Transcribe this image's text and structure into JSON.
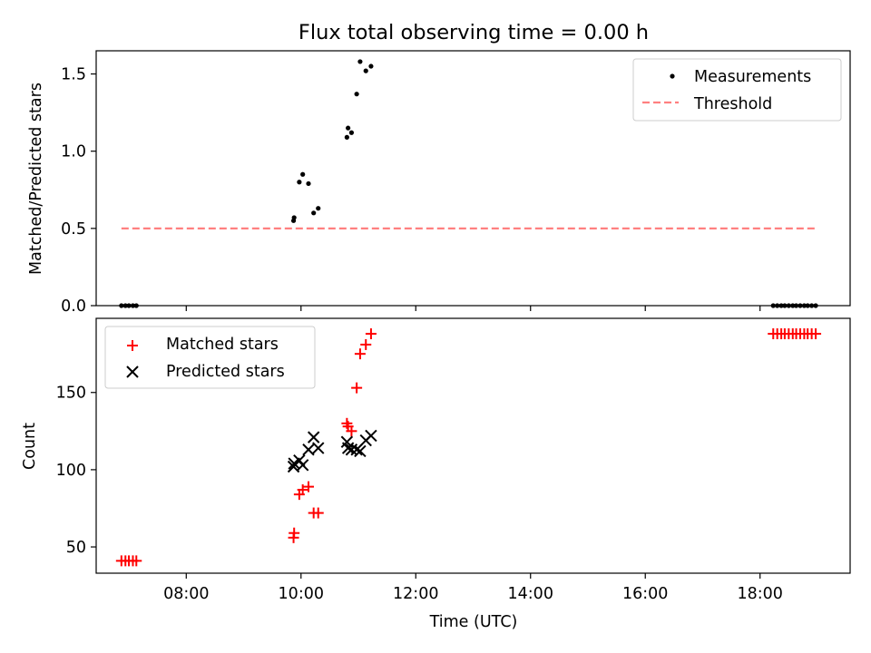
{
  "figure": {
    "title": "Flux total observing time = 0.00 h"
  },
  "colors": {
    "measurements": "#000000",
    "threshold": "#ff8080",
    "matched": "#ff0000",
    "predicted": "#000000"
  },
  "chart_data": [
    {
      "type": "scatter",
      "panel": "top",
      "title": "Flux total observing time = 0.00 h",
      "xlabel": "",
      "ylabel": "Matched/Predicted stars",
      "x_unit": "time of day (UTC), hours",
      "xlim": [
        6.43,
        19.57
      ],
      "ylim": [
        0.0,
        1.65
      ],
      "xticks": [
        8,
        10,
        12,
        14,
        16,
        18
      ],
      "yticks": [
        0.0,
        0.5,
        1.0,
        1.5
      ],
      "ytick_labels": [
        "0.0",
        "0.5",
        "1.0",
        "1.5"
      ],
      "legend_position": "top-right",
      "series": [
        {
          "name": "Measurements",
          "marker": "dot",
          "x": [
            6.87,
            6.94,
            7.0,
            7.07,
            7.13,
            9.87,
            9.88,
            9.97,
            10.03,
            10.13,
            10.22,
            10.3,
            10.8,
            10.82,
            10.88,
            10.97,
            11.03,
            11.13,
            11.22,
            18.23,
            18.3,
            18.37,
            18.43,
            18.5,
            18.57,
            18.63,
            18.7,
            18.77,
            18.83,
            18.9,
            18.97
          ],
          "y": [
            0.0,
            0.0,
            0.0,
            0.0,
            0.0,
            0.55,
            0.57,
            0.8,
            0.85,
            0.79,
            0.6,
            0.63,
            1.09,
            1.15,
            1.12,
            1.37,
            1.58,
            1.52,
            1.55,
            0.0,
            0.0,
            0.0,
            0.0,
            0.0,
            0.0,
            0.0,
            0.0,
            0.0,
            0.0,
            0.0,
            0.0
          ]
        },
        {
          "name": "Threshold",
          "marker": "dashed-line",
          "x": [
            6.87,
            18.97
          ],
          "y": [
            0.5,
            0.5
          ]
        }
      ]
    },
    {
      "type": "scatter",
      "panel": "bottom",
      "xlabel": "Time (UTC)",
      "ylabel": "Count",
      "x_unit": "time of day (UTC), hours",
      "xlim": [
        6.43,
        19.57
      ],
      "ylim": [
        33,
        198
      ],
      "xticks": [
        8,
        10,
        12,
        14,
        16,
        18
      ],
      "xtick_labels": [
        "08:00",
        "10:00",
        "12:00",
        "14:00",
        "16:00",
        "18:00"
      ],
      "yticks": [
        50,
        100,
        150
      ],
      "ytick_labels": [
        "50",
        "100",
        "150"
      ],
      "legend_position": "top-left",
      "series": [
        {
          "name": "Matched stars",
          "marker": "plus",
          "x": [
            6.87,
            6.94,
            7.0,
            7.07,
            7.13,
            9.87,
            9.88,
            9.97,
            10.03,
            10.13,
            10.22,
            10.3,
            10.8,
            10.82,
            10.88,
            10.97,
            11.03,
            11.13,
            11.22,
            18.23,
            18.3,
            18.37,
            18.43,
            18.5,
            18.57,
            18.63,
            18.7,
            18.77,
            18.83,
            18.9,
            18.97
          ],
          "y": [
            41,
            41,
            41,
            41,
            41,
            56,
            59,
            84,
            87,
            89,
            72,
            72,
            130,
            128,
            125,
            153,
            175,
            181,
            188,
            188,
            188,
            188,
            188,
            188,
            188,
            188,
            188,
            188,
            188,
            188,
            188
          ]
        },
        {
          "name": "Predicted stars",
          "marker": "x",
          "x": [
            9.87,
            9.88,
            9.97,
            10.03,
            10.13,
            10.22,
            10.3,
            10.8,
            10.82,
            10.88,
            10.97,
            11.03,
            11.13,
            11.22
          ],
          "y": [
            102,
            104,
            106,
            103,
            113,
            121,
            114,
            118,
            114,
            113,
            113,
            112,
            119,
            122
          ]
        }
      ]
    }
  ]
}
